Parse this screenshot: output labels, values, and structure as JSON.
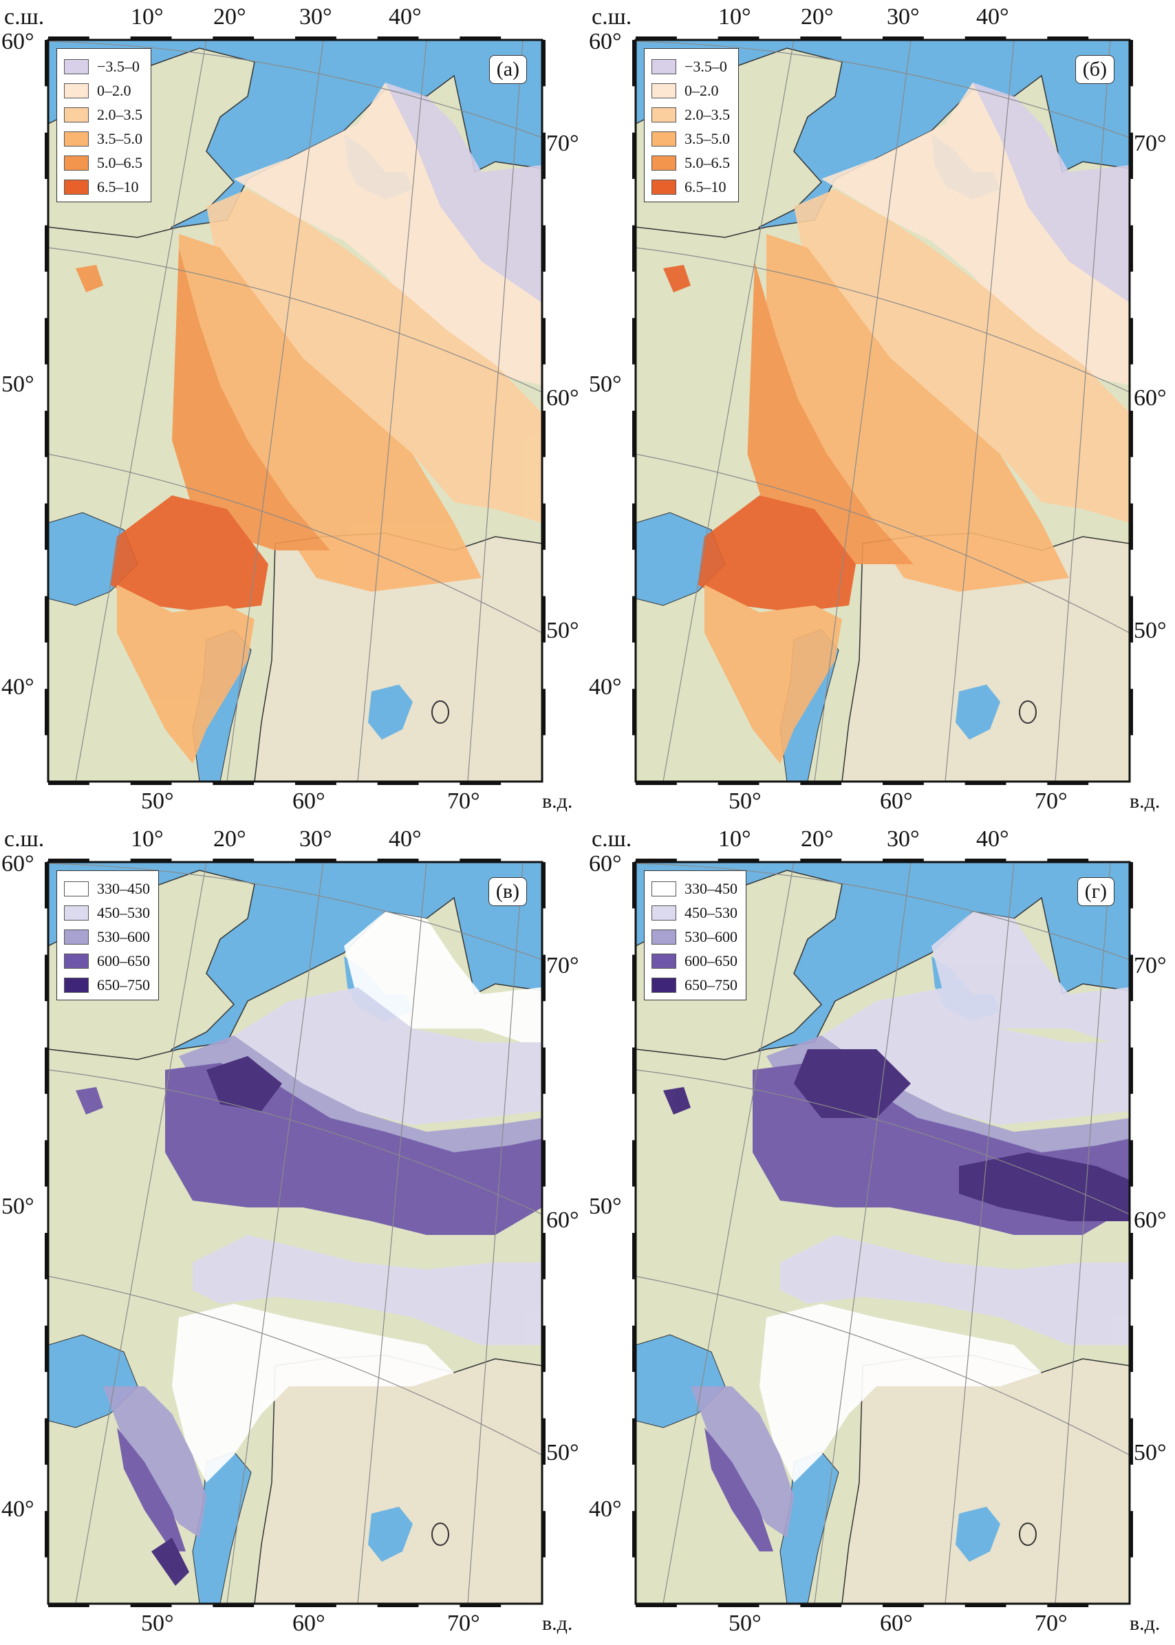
{
  "panels": [
    {
      "tag": "(а)",
      "kind": "anomaly",
      "legend": [
        {
          "label": "−3.5–0",
          "color": "#d8d0e8"
        },
        {
          "label": "0–2.0",
          "color": "#fde6d2"
        },
        {
          "label": "2.0–3.5",
          "color": "#fccf9f"
        },
        {
          "label": "3.5–5.0",
          "color": "#fab571"
        },
        {
          "label": "5.0–6.5",
          "color": "#f4954d"
        },
        {
          "label": "6.5–10",
          "color": "#e8612a"
        }
      ],
      "lat_labels": [
        "60°",
        "50°",
        "40°"
      ],
      "lon_top": [
        "10°",
        "20°",
        "30°",
        "40°"
      ],
      "lon_bottom": [
        "50°",
        "60°",
        "70°"
      ],
      "right_labels": [
        "70°",
        "60°",
        "50°"
      ],
      "unit_lat": "с.ш.",
      "unit_lon": "в.д."
    },
    {
      "tag": "(б)",
      "kind": "anomaly",
      "legend": [
        {
          "label": "−3.5–0",
          "color": "#d8d0e8"
        },
        {
          "label": "0–2.0",
          "color": "#fde6d2"
        },
        {
          "label": "2.0–3.5",
          "color": "#fccf9f"
        },
        {
          "label": "3.5–5.0",
          "color": "#fab571"
        },
        {
          "label": "5.0–6.5",
          "color": "#f4954d"
        },
        {
          "label": "6.5–10",
          "color": "#e8612a"
        }
      ],
      "lat_labels": [
        "60°",
        "50°",
        "40°"
      ],
      "lon_top": [
        "10°",
        "20°",
        "30°",
        "40°"
      ],
      "lon_bottom": [
        "50°",
        "60°",
        "70°"
      ],
      "right_labels": [
        "70°",
        "60°",
        "50°"
      ],
      "unit_lat": "с.ш.",
      "unit_lon": "в.д."
    },
    {
      "tag": "(в)",
      "kind": "precip",
      "legend": [
        {
          "label": "330–450",
          "color": "#ffffff"
        },
        {
          "label": "450–530",
          "color": "#dcdaee"
        },
        {
          "label": "530–600",
          "color": "#a7a2d0"
        },
        {
          "label": "600–650",
          "color": "#6e56a8"
        },
        {
          "label": "650–750",
          "color": "#3f2578"
        }
      ],
      "lat_labels": [
        "60°",
        "50°",
        "40°"
      ],
      "lon_top": [
        "10°",
        "20°",
        "30°",
        "40°"
      ],
      "lon_bottom": [
        "50°",
        "60°",
        "70°"
      ],
      "right_labels": [
        "70°",
        "60°",
        "50°"
      ],
      "unit_lat": "с.ш.",
      "unit_lon": "в.д."
    },
    {
      "tag": "(г)",
      "kind": "precip",
      "legend": [
        {
          "label": "330–450",
          "color": "#ffffff"
        },
        {
          "label": "450–530",
          "color": "#dcdaee"
        },
        {
          "label": "530–600",
          "color": "#a7a2d0"
        },
        {
          "label": "600–650",
          "color": "#6e56a8"
        },
        {
          "label": "650–750",
          "color": "#3f2578"
        }
      ],
      "lat_labels": [
        "60°",
        "50°",
        "40°"
      ],
      "lon_top": [
        "10°",
        "20°",
        "30°",
        "40°"
      ],
      "lon_bottom": [
        "50°",
        "60°",
        "70°"
      ],
      "right_labels": [
        "70°",
        "60°",
        "50°"
      ],
      "unit_lat": "с.ш.",
      "unit_lon": "в.д."
    }
  ],
  "colors": {
    "sea": "#6db4e2",
    "land": "#dfe3c4",
    "land_south": "#e9e2cd",
    "border": "#333333"
  }
}
